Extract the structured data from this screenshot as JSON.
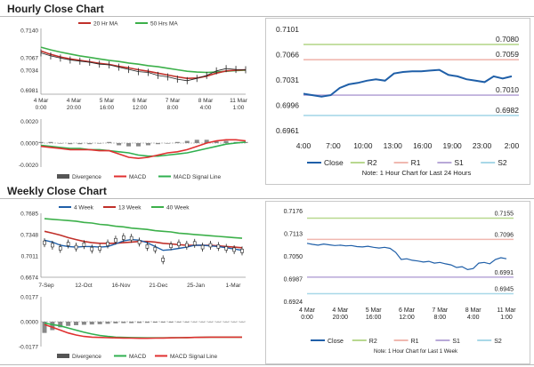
{
  "hourly_title": "Hourly Close Chart",
  "weekly_title": "Weekly Close Chart",
  "colors": {
    "close": "#1f5fa8",
    "r2": "#b8d88f",
    "r1": "#f0b8b0",
    "s1": "#b8a8d8",
    "s2": "#a8d8e8",
    "ma1": "#c0302a",
    "ma2": "#3cb04a",
    "macd": "#e03030",
    "signal": "#30b050",
    "divergence": "#888888",
    "price": "#222222"
  },
  "chart_data": [
    {
      "id": "hourly_price",
      "type": "line",
      "x_ticks": [
        "4 Mar\n0:00",
        "4 Mar\n20:00",
        "5 Mar\n16:00",
        "6 Mar\n12:00",
        "7 Mar\n8:00",
        "8 Mar\n4:00",
        "11 Mar\n1:00"
      ],
      "y_ticks": [
        "0.7140",
        "0.7067",
        "0.7034",
        "0.6981"
      ],
      "ylim": [
        0.697,
        0.7145
      ],
      "legend": [
        "20 Hr MA",
        "50 Hrs MA"
      ],
      "series": [
        {
          "name": "Price",
          "values": [
            0.708,
            0.7072,
            0.7066,
            0.7061,
            0.7058,
            0.7055,
            0.705,
            0.7048,
            0.7042,
            0.7036,
            0.703,
            0.7028,
            0.702,
            0.7016,
            0.701,
            0.7006,
            0.7012,
            0.702,
            0.7032,
            0.7038,
            0.7036,
            0.7035
          ]
        },
        {
          "name": "20 Hr MA",
          "values": [
            0.7085,
            0.7076,
            0.7069,
            0.7064,
            0.706,
            0.7056,
            0.7052,
            0.7049,
            0.7044,
            0.704,
            0.7035,
            0.7031,
            0.7026,
            0.7021,
            0.7016,
            0.7012,
            0.7013,
            0.7018,
            0.7026,
            0.7032,
            0.7034,
            0.7035
          ]
        },
        {
          "name": "50 Hrs MA",
          "values": [
            0.7095,
            0.7088,
            0.7082,
            0.7077,
            0.7072,
            0.7068,
            0.7064,
            0.706,
            0.7057,
            0.7053,
            0.705,
            0.7046,
            0.7043,
            0.7039,
            0.7035,
            0.7031,
            0.7029,
            0.7028,
            0.7029,
            0.7031,
            0.7033,
            0.7034
          ]
        }
      ]
    },
    {
      "id": "hourly_macd",
      "type": "line",
      "y_ticks": [
        "0.0020",
        "0.0000",
        "-0.0020"
      ],
      "ylim": [
        -0.0022,
        0.0022
      ],
      "legend": [
        "Divergence",
        "MACD",
        "MACD Signal Line"
      ],
      "series": [
        {
          "name": "Divergence",
          "values": [
            0.0001,
            0.0001,
            0.0,
            -0.0001,
            -0.0001,
            -0.0001,
            0.0,
            0.0001,
            -0.0002,
            -0.0003,
            -0.0003,
            -0.0002,
            -0.0001,
            0.0,
            0.0001,
            0.0002,
            0.0003,
            0.0003,
            0.0002,
            0.0002,
            0.0001,
            0.0001
          ]
        },
        {
          "name": "MACD",
          "values": [
            -0.0003,
            -0.0004,
            -0.0005,
            -0.0006,
            -0.0006,
            -0.0006,
            -0.0007,
            -0.0007,
            -0.001,
            -0.0013,
            -0.0014,
            -0.0013,
            -0.0011,
            -0.0009,
            -0.0008,
            -0.0006,
            -0.0003,
            0.0,
            0.0002,
            0.0003,
            0.0003,
            0.0002
          ]
        },
        {
          "name": "MACD Signal Line",
          "values": [
            -0.0002,
            -0.0003,
            -0.0004,
            -0.0005,
            -0.0005,
            -0.0006,
            -0.0006,
            -0.0007,
            -0.0008,
            -0.0009,
            -0.0011,
            -0.0012,
            -0.0012,
            -0.0011,
            -0.001,
            -0.0009,
            -0.0007,
            -0.0005,
            -0.0003,
            -0.0001,
            0.0,
            0.0001
          ]
        }
      ]
    },
    {
      "id": "hourly_pivot",
      "type": "line",
      "x_ticks": [
        "4:00",
        "7:00",
        "10:00",
        "13:00",
        "16:00",
        "19:00",
        "23:00",
        "2:00"
      ],
      "y_ticks": [
        "0.7101",
        "0.7066",
        "0.7031",
        "0.6996",
        "0.6961"
      ],
      "ylim": [
        0.6961,
        0.7101
      ],
      "levels": {
        "R2": 0.708,
        "R1": 0.7059,
        "S1": 0.701,
        "S2": 0.6982
      },
      "level_labels": [
        "0.7080",
        "0.7059",
        "0.7010",
        "0.6982"
      ],
      "legend": [
        "Close",
        "R2",
        "R1",
        "S1",
        "S2"
      ],
      "note": "Note: 1 Hour Chart for Last 24 Hours",
      "series": [
        {
          "name": "Close",
          "values": [
            0.7012,
            0.701,
            0.7008,
            0.701,
            0.702,
            0.7025,
            0.7027,
            0.703,
            0.7032,
            0.703,
            0.704,
            0.7042,
            0.7043,
            0.7043,
            0.7044,
            0.7045,
            0.7038,
            0.7036,
            0.7032,
            0.703,
            0.7028,
            0.7036,
            0.7033,
            0.7036
          ]
        }
      ]
    },
    {
      "id": "weekly_price",
      "type": "line",
      "x_ticks": [
        "7-Sep",
        "12-Oct",
        "16-Nov",
        "21-Dec",
        "25-Jan",
        "1-Mar"
      ],
      "y_ticks": [
        "0.7685",
        "0.7348",
        "0.7011",
        "0.6674"
      ],
      "ylim": [
        0.6674,
        0.7685
      ],
      "legend": [
        "4 Week",
        "13 Week",
        "40 Week"
      ],
      "series": [
        {
          "name": "Price",
          "values": [
            0.722,
            0.718,
            0.713,
            0.72,
            0.715,
            0.719,
            0.712,
            0.713,
            0.72,
            0.726,
            0.73,
            0.729,
            0.723,
            0.716,
            0.712,
            0.695,
            0.717,
            0.72,
            0.718,
            0.721,
            0.715,
            0.718,
            0.716,
            0.713,
            0.711,
            0.709
          ]
        },
        {
          "name": "4 Week",
          "values": [
            0.726,
            0.723,
            0.718,
            0.716,
            0.715,
            0.716,
            0.716,
            0.715,
            0.716,
            0.72,
            0.725,
            0.727,
            0.726,
            0.722,
            0.716,
            0.71,
            0.711,
            0.713,
            0.715,
            0.718,
            0.718,
            0.717,
            0.716,
            0.714,
            0.712,
            0.71
          ]
        },
        {
          "name": "13 Week",
          "values": [
            0.74,
            0.737,
            0.734,
            0.73,
            0.727,
            0.724,
            0.722,
            0.721,
            0.721,
            0.721,
            0.722,
            0.723,
            0.724,
            0.724,
            0.723,
            0.721,
            0.72,
            0.719,
            0.718,
            0.718,
            0.718,
            0.718,
            0.717,
            0.716,
            0.715,
            0.714
          ]
        },
        {
          "name": "40 Week",
          "values": [
            0.76,
            0.759,
            0.758,
            0.757,
            0.756,
            0.754,
            0.753,
            0.751,
            0.75,
            0.748,
            0.747,
            0.745,
            0.744,
            0.743,
            0.741,
            0.74,
            0.739,
            0.737,
            0.736,
            0.735,
            0.734,
            0.733,
            0.732,
            0.731,
            0.73,
            0.729
          ]
        }
      ]
    },
    {
      "id": "weekly_macd",
      "type": "line",
      "y_ticks": [
        "0.0177",
        "0.0000",
        "-0.0177"
      ],
      "ylim": [
        -0.0177,
        0.0177
      ],
      "legend": [
        "Divergence",
        "MACD",
        "MACD Signal Line"
      ],
      "series": [
        {
          "name": "Divergence",
          "values": [
            -0.008,
            -0.006,
            -0.004,
            -0.003,
            -0.0025,
            -0.0022,
            -0.002,
            -0.0018,
            -0.0015,
            -0.0012,
            -0.001,
            -0.001,
            -0.0009,
            -0.0008,
            -0.0007,
            -0.0006,
            -0.0006,
            -0.0005,
            -0.0005,
            -0.0004,
            -0.0004,
            -0.0004,
            -0.0003,
            -0.0003,
            -0.0003,
            -0.0003
          ]
        },
        {
          "name": "MACD",
          "values": [
            -0.002,
            -0.004,
            -0.006,
            -0.008,
            -0.0095,
            -0.0105,
            -0.011,
            -0.0112,
            -0.0114,
            -0.0115,
            -0.0116,
            -0.0117,
            -0.0118,
            -0.0118,
            -0.0117,
            -0.0116,
            -0.0115,
            -0.0114,
            -0.0113,
            -0.0112,
            -0.0111,
            -0.011,
            -0.011,
            -0.011,
            -0.011,
            -0.011
          ]
        },
        {
          "name": "MACD Signal Line",
          "values": [
            -0.001,
            -0.002,
            -0.003,
            -0.0045,
            -0.006,
            -0.0075,
            -0.0088,
            -0.0098,
            -0.0105,
            -0.011,
            -0.0112,
            -0.0113,
            -0.0114,
            -0.0115,
            -0.0115,
            -0.0115,
            -0.0114,
            -0.0114,
            -0.0113,
            -0.0112,
            -0.0111,
            -0.011,
            -0.011,
            -0.011,
            -0.011,
            -0.011
          ]
        }
      ]
    },
    {
      "id": "weekly_pivot",
      "type": "line",
      "x_ticks": [
        "4 Mar\n0:00",
        "4 Mar\n20:00",
        "5 Mar\n16:00",
        "6 Mar\n12:00",
        "7 Mar\n8:00",
        "8 Mar\n4:00",
        "11 Mar\n1:00"
      ],
      "y_ticks": [
        "0.7176",
        "0.7113",
        "0.7050",
        "0.6987",
        "0.6924"
      ],
      "ylim": [
        0.6924,
        0.7176
      ],
      "levels": {
        "R2": 0.7155,
        "R1": 0.7096,
        "S1": 0.6991,
        "S2": 0.6945
      },
      "level_labels": [
        "0.7155",
        "0.7096",
        "0.6991",
        "0.6945"
      ],
      "legend": [
        "Close",
        "R2",
        "R1",
        "S1",
        "S2"
      ],
      "note": "Note: 1 Hour Chart for Last 1 Week",
      "series": [
        {
          "name": "Close",
          "values": [
            0.7085,
            0.7082,
            0.708,
            0.7083,
            0.7081,
            0.7079,
            0.708,
            0.7078,
            0.7079,
            0.7076,
            0.7075,
            0.7077,
            0.7074,
            0.7072,
            0.7074,
            0.7071,
            0.706,
            0.704,
            0.7042,
            0.7038,
            0.7036,
            0.7033,
            0.7035,
            0.703,
            0.7032,
            0.7028,
            0.7025,
            0.7018,
            0.702,
            0.7012,
            0.7015,
            0.703,
            0.7032,
            0.7028,
            0.704,
            0.7045,
            0.7042
          ]
        }
      ]
    }
  ]
}
